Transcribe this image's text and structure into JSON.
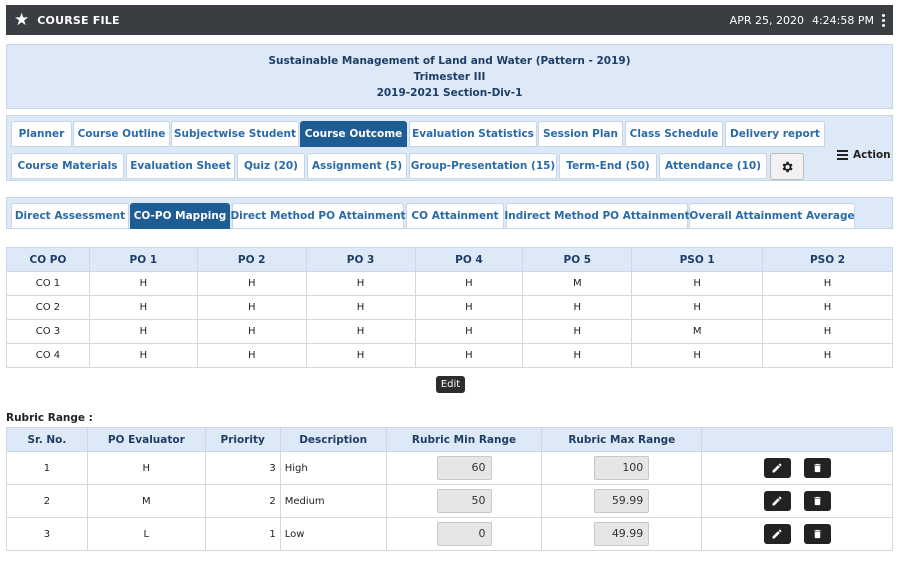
{
  "topbar": {
    "title": "COURSE FILE",
    "date": "APR 25, 2020",
    "time": "4:24:58 PM"
  },
  "info": {
    "course": "Sustainable Management of Land and Water (Pattern - 2019)",
    "term": "Trimester III",
    "batch": "2019-2021 Section-Div-1"
  },
  "tabs_row1": [
    "Planner",
    "Course Outline",
    "Subjectwise Student",
    "Course Outcome",
    "Evaluation Statistics",
    "Session Plan",
    "Class Schedule",
    "Delivery report"
  ],
  "tabs_row2": [
    "Course Materials",
    "Evaluation Sheet",
    "Quiz (20)",
    "Assignment (5)",
    "Group-Presentation (15)",
    "Term-End (50)",
    "Attendance (10)"
  ],
  "action_label": "Action",
  "subtabs": [
    "Direct Assessment",
    "CO-PO Mapping",
    "Direct Method PO Attainment",
    "CO Attainment",
    "Indirect Method PO Attainment",
    "Overall Attainment Average"
  ],
  "mapping": {
    "headers": [
      "CO PO",
      "PO 1",
      "PO 2",
      "PO 3",
      "PO 4",
      "PO 5",
      "PSO 1",
      "PSO 2"
    ],
    "rows": [
      [
        "CO 1",
        "H",
        "H",
        "H",
        "H",
        "M",
        "H",
        "H"
      ],
      [
        "CO 2",
        "H",
        "H",
        "H",
        "H",
        "H",
        "H",
        "H"
      ],
      [
        "CO 3",
        "H",
        "H",
        "H",
        "H",
        "H",
        "M",
        "H"
      ],
      [
        "CO 4",
        "H",
        "H",
        "H",
        "H",
        "H",
        "H",
        "H"
      ]
    ]
  },
  "edit_label": "Edit",
  "rubric": {
    "title": "Rubric Range :",
    "headers": [
      "Sr. No.",
      "PO Evaluator",
      "Priority",
      "Description",
      "Rubric Min Range",
      "Rubric Max Range",
      ""
    ],
    "rows": [
      {
        "sr": "1",
        "evaluator": "H",
        "priority": "3",
        "description": "High",
        "min": "60",
        "max": "100"
      },
      {
        "sr": "2",
        "evaluator": "M",
        "priority": "2",
        "description": "Medium",
        "min": "50",
        "max": "59.99"
      },
      {
        "sr": "3",
        "evaluator": "L",
        "priority": "1",
        "description": "Low",
        "min": "0",
        "max": "49.99"
      }
    ]
  },
  "icons": {
    "title_icon": "star-icon",
    "menu_icon": "kebab-icon",
    "settings_icon": "gear-icon",
    "action_icon": "hamburger-icon",
    "edit_icon": "pencil-icon",
    "delete_icon": "trash-icon"
  },
  "colors": {
    "topbar": "#3a3d42",
    "panel": "#dde9f6",
    "active_tab": "#1e5c94",
    "tab_text": "#2a6aa8"
  }
}
